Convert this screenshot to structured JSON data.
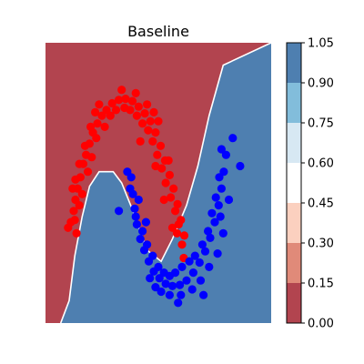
{
  "chart_data": {
    "type": "contourf+scatter",
    "title": "Baseline",
    "xlim": [
      -1.5,
      2.5
    ],
    "ylim": [
      -1.0,
      1.5
    ],
    "colorbar": {
      "levels": [
        0.0,
        0.15,
        0.3,
        0.45,
        0.6,
        0.75,
        0.9,
        1.05
      ],
      "tick_labels": [
        "0.00",
        "0.15",
        "0.30",
        "0.45",
        "0.60",
        "0.75",
        "0.90",
        "1.05"
      ],
      "colors": [
        "#b2444f",
        "#e08a79",
        "#fbd0bf",
        "#ffffff",
        "#d7e8f3",
        "#82bddb",
        "#4e7fb0"
      ]
    },
    "decision_boundary": {
      "points": [
        [
          -1.23,
          -1.0
        ],
        [
          -1.08,
          -0.8
        ],
        [
          -0.98,
          -0.4
        ],
        [
          -0.85,
          -0.05
        ],
        [
          -0.72,
          0.22
        ],
        [
          -0.55,
          0.35
        ],
        [
          -0.3,
          0.35
        ],
        [
          -0.15,
          0.25
        ],
        [
          0.05,
          0.0
        ],
        [
          0.3,
          -0.35
        ],
        [
          0.55,
          -0.45
        ],
        [
          0.75,
          -0.25
        ],
        [
          1.0,
          0.05
        ],
        [
          1.2,
          0.4
        ],
        [
          1.4,
          0.85
        ],
        [
          1.65,
          1.3
        ],
        [
          2.5,
          1.5
        ]
      ],
      "upper_class_color": "#b2444f",
      "lower_class_color": "#4e7fb0"
    },
    "series": [
      {
        "color": "#ff0000",
        "points": [
          [
            -0.95,
            -0.2
          ],
          [
            -0.98,
            -0.08
          ],
          [
            -1.0,
            0.0
          ],
          [
            -0.97,
            0.1
          ],
          [
            -0.93,
            0.2
          ],
          [
            -0.88,
            0.3
          ],
          [
            -0.83,
            0.42
          ],
          [
            -0.78,
            0.5
          ],
          [
            -0.72,
            0.6
          ],
          [
            -0.66,
            0.7
          ],
          [
            -0.58,
            0.78
          ],
          [
            -0.5,
            0.85
          ],
          [
            -0.42,
            0.9
          ],
          [
            -0.32,
            0.96
          ],
          [
            -0.2,
            0.99
          ],
          [
            -0.08,
            1.0
          ],
          [
            0.04,
            0.98
          ],
          [
            0.15,
            0.93
          ],
          [
            0.26,
            0.87
          ],
          [
            0.36,
            0.8
          ],
          [
            0.45,
            0.7
          ],
          [
            0.54,
            0.58
          ],
          [
            0.62,
            0.45
          ],
          [
            0.7,
            0.32
          ],
          [
            0.77,
            0.2
          ],
          [
            0.84,
            0.06
          ],
          [
            0.9,
            -0.08
          ],
          [
            0.96,
            -0.22
          ],
          [
            -1.05,
            -0.1
          ],
          [
            -0.9,
            0.05
          ],
          [
            -0.85,
            0.15
          ],
          [
            -0.75,
            0.35
          ],
          [
            -0.68,
            0.48
          ],
          [
            -0.6,
            0.65
          ],
          [
            -0.45,
            0.75
          ],
          [
            -0.35,
            0.85
          ],
          [
            -0.25,
            0.9
          ],
          [
            -0.1,
            0.92
          ],
          [
            0.0,
            0.9
          ],
          [
            0.12,
            0.85
          ],
          [
            0.22,
            0.78
          ],
          [
            0.32,
            0.72
          ],
          [
            0.4,
            0.62
          ],
          [
            0.48,
            0.5
          ],
          [
            0.56,
            0.38
          ],
          [
            0.63,
            0.25
          ],
          [
            0.72,
            0.12
          ],
          [
            0.8,
            0.0
          ],
          [
            0.86,
            -0.12
          ],
          [
            0.92,
            -0.3
          ],
          [
            -1.02,
            0.2
          ],
          [
            -0.8,
            0.58
          ],
          [
            -0.55,
            0.95
          ],
          [
            -0.15,
            1.08
          ],
          [
            0.3,
            0.95
          ],
          [
            0.5,
            0.8
          ],
          [
            0.6,
            0.1
          ],
          [
            0.75,
            -0.15
          ],
          [
            -0.9,
            0.42
          ],
          [
            -0.62,
            0.88
          ],
          [
            0.1,
            1.05
          ],
          [
            0.42,
            0.88
          ],
          [
            0.68,
            0.45
          ],
          [
            0.83,
            -0.2
          ],
          [
            -1.1,
            -0.15
          ],
          [
            -0.97,
            0.28
          ],
          [
            -0.7,
            0.75
          ],
          [
            0.18,
            0.62
          ],
          [
            0.45,
            0.4
          ],
          [
            0.95,
            -0.42
          ]
        ]
      },
      {
        "color": "#0000ff",
        "points": [
          [
            0.02,
            0.3
          ],
          [
            0.05,
            0.15
          ],
          [
            0.08,
            0.02
          ],
          [
            0.12,
            -0.12
          ],
          [
            0.18,
            -0.25
          ],
          [
            0.25,
            -0.35
          ],
          [
            0.33,
            -0.45
          ],
          [
            0.42,
            -0.54
          ],
          [
            0.52,
            -0.6
          ],
          [
            0.63,
            -0.65
          ],
          [
            0.75,
            -0.67
          ],
          [
            0.88,
            -0.66
          ],
          [
            1.0,
            -0.62
          ],
          [
            1.12,
            -0.55
          ],
          [
            1.23,
            -0.46
          ],
          [
            1.33,
            -0.36
          ],
          [
            1.42,
            -0.24
          ],
          [
            1.5,
            -0.1
          ],
          [
            1.57,
            0.05
          ],
          [
            1.62,
            0.2
          ],
          [
            1.66,
            0.35
          ],
          [
            1.7,
            0.5
          ],
          [
            -0.05,
            0.35
          ],
          [
            0.0,
            0.2
          ],
          [
            0.1,
            -0.05
          ],
          [
            0.22,
            -0.18
          ],
          [
            0.3,
            -0.3
          ],
          [
            0.4,
            -0.4
          ],
          [
            0.5,
            -0.5
          ],
          [
            0.6,
            -0.55
          ],
          [
            0.7,
            -0.58
          ],
          [
            0.8,
            -0.55
          ],
          [
            0.92,
            -0.5
          ],
          [
            1.05,
            -0.45
          ],
          [
            1.15,
            -0.4
          ],
          [
            1.28,
            -0.3
          ],
          [
            1.38,
            -0.18
          ],
          [
            1.45,
            -0.02
          ],
          [
            1.52,
            0.12
          ],
          [
            1.58,
            0.3
          ],
          [
            0.15,
            0.1
          ],
          [
            0.35,
            -0.6
          ],
          [
            0.55,
            -0.72
          ],
          [
            0.7,
            -0.75
          ],
          [
            0.9,
            -0.75
          ],
          [
            1.1,
            -0.7
          ],
          [
            1.25,
            -0.62
          ],
          [
            1.4,
            -0.5
          ],
          [
            1.55,
            -0.38
          ],
          [
            1.65,
            -0.2
          ],
          [
            1.75,
            0.1
          ],
          [
            1.82,
            0.65
          ],
          [
            1.95,
            0.4
          ],
          [
            1.62,
            0.55
          ],
          [
            -0.2,
            0.0
          ],
          [
            0.45,
            -0.68
          ],
          [
            0.85,
            -0.82
          ],
          [
            1.3,
            -0.75
          ],
          [
            1.6,
            -0.05
          ],
          [
            0.28,
            -0.1
          ]
        ]
      }
    ]
  }
}
